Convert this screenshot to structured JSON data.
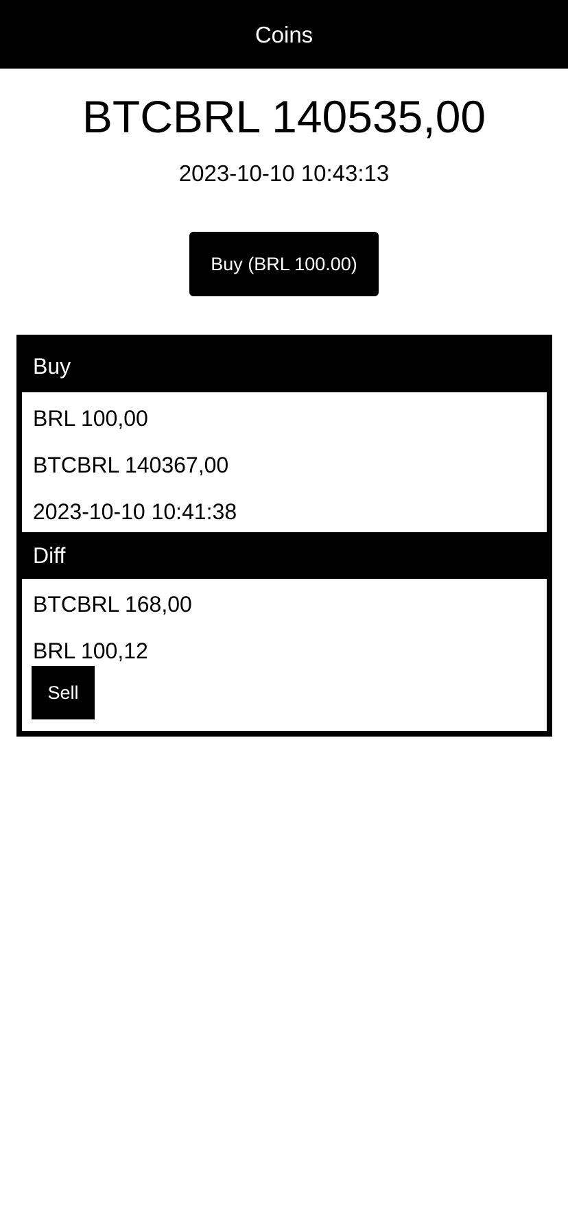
{
  "app_bar": {
    "title": "Coins"
  },
  "ticker": {
    "price_label": "BTCBRL 140535,00",
    "timestamp": "2023-10-10 10:43:13"
  },
  "actions": {
    "buy_label": "Buy (BRL 100.00)"
  },
  "buy_section": {
    "header": "Buy",
    "amount": "BRL 100,00",
    "price": "BTCBRL 140367,00",
    "timestamp": "2023-10-10 10:41:38"
  },
  "diff_section": {
    "header": "Diff",
    "price_diff": "BTCBRL 168,00",
    "value": "BRL 100,12",
    "sell_label": "Sell"
  },
  "colors": {
    "primary": "#000000",
    "on_primary": "#ffffff",
    "background": "#ffffff"
  }
}
